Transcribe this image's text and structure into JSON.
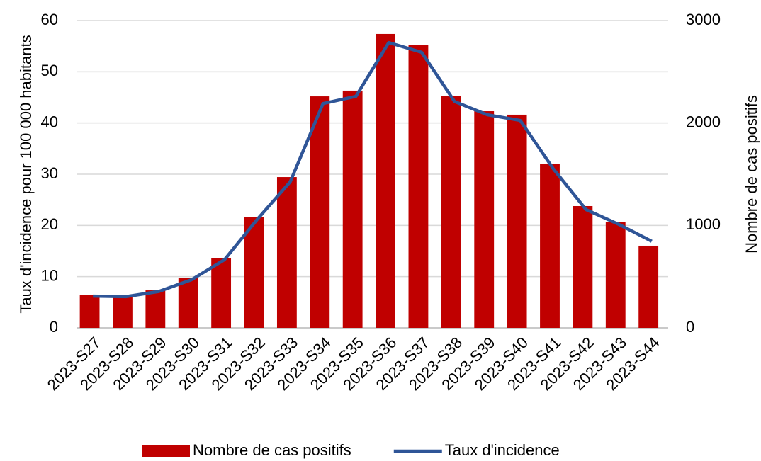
{
  "chart_data": {
    "type": "bar_line",
    "categories": [
      "2023-S27",
      "2023-S28",
      "2023-S29",
      "2023-S30",
      "2023-S31",
      "2023-S32",
      "2023-S33",
      "2023-S34",
      "2023-S35",
      "2023-S36",
      "2023-S37",
      "2023-S38",
      "2023-S39",
      "2023-S40",
      "2023-S41",
      "2023-S42",
      "2023-S43",
      "2023-S44"
    ],
    "series": [
      {
        "name": "Nombre de cas positifs",
        "type": "bar",
        "axis": "y2",
        "color": "#c00000",
        "values": [
          318,
          304,
          366,
          484,
          684,
          1085,
          1472,
          2260,
          2316,
          2869,
          2758,
          2267,
          2115,
          2081,
          1597,
          1189,
          1030,
          802
        ]
      },
      {
        "name": "Taux d'incidence",
        "type": "line",
        "axis": "y",
        "color": "#2f5597",
        "values": [
          6.2,
          6.1,
          7.1,
          9.4,
          13.3,
          21.2,
          28.5,
          43.8,
          45.2,
          55.7,
          53.8,
          44.2,
          41.6,
          40.5,
          31.1,
          23.1,
          20.2,
          16.9
        ]
      }
    ],
    "ylabel": "Taux d'incidence pour 100 000 habitants",
    "y2label": "Nombre de cas positifs",
    "ylim": [
      0,
      60
    ],
    "yticks": [
      0,
      10,
      20,
      30,
      40,
      50,
      60
    ],
    "y2lim": [
      0,
      3000
    ],
    "y2ticks": [
      0,
      1000,
      2000,
      3000
    ],
    "grid": true,
    "legend": "bottom"
  }
}
